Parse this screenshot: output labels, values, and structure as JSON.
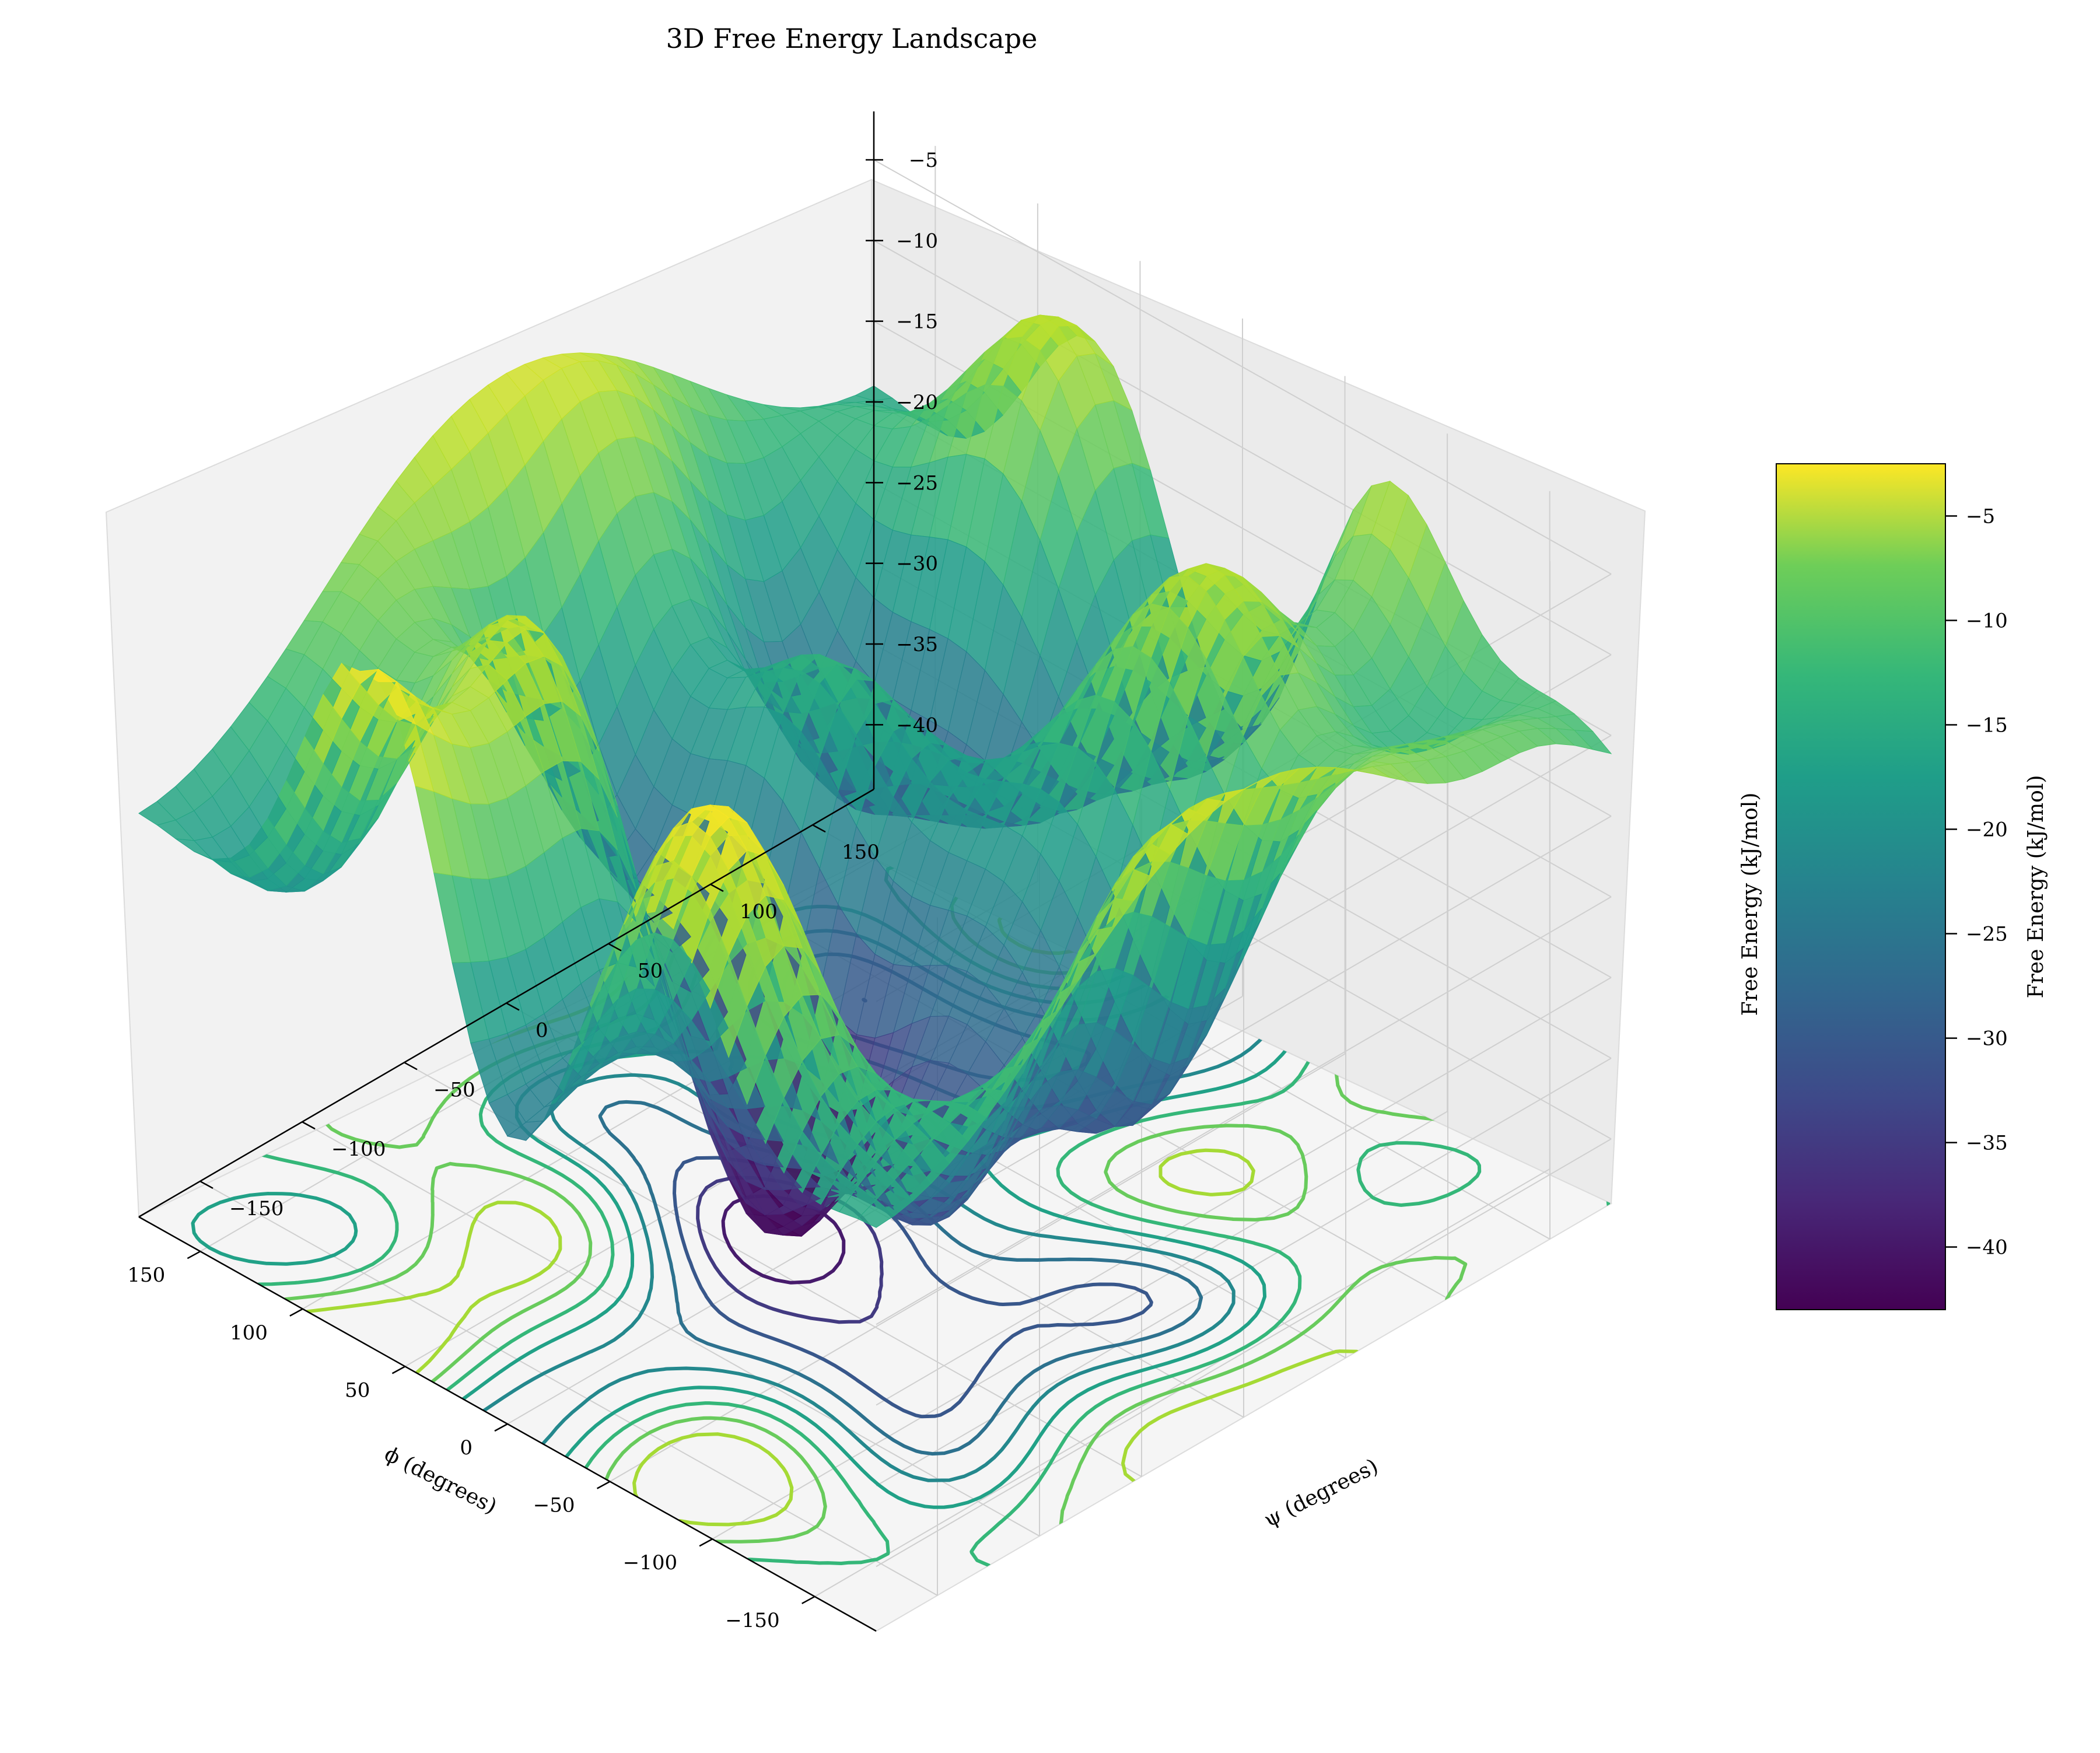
{
  "chart_data": {
    "type": "surface3d",
    "title": "3D Free Energy Landscape",
    "xlabel": "ϕ (degrees)",
    "ylabel": "ψ (degrees)",
    "zlabel": "Free Energy (kJ/mol)",
    "colorbar_label": "Free Energy (kJ/mol)",
    "colormap": "viridis",
    "xlim": [
      -180,
      180
    ],
    "ylim": [
      -180,
      180
    ],
    "zlim": [
      -44,
      -2
    ],
    "xticks": [
      "−150",
      "−100",
      "−50",
      "0",
      "50",
      "100",
      "150"
    ],
    "xtick_values": [
      -150,
      -100,
      -50,
      0,
      50,
      100,
      150
    ],
    "yticks": [
      "−150",
      "−100",
      "−50",
      "0",
      "50",
      "100",
      "150"
    ],
    "ytick_values": [
      -150,
      -100,
      -50,
      0,
      50,
      100,
      150
    ],
    "zticks": [
      "−5",
      "−10",
      "−15",
      "−20",
      "−25",
      "−30",
      "−35",
      "−40"
    ],
    "ztick_values": [
      -5,
      -10,
      -15,
      -20,
      -25,
      -30,
      -35,
      -40
    ],
    "colorbar_ticks": [
      "−5",
      "−10",
      "−15",
      "−20",
      "−25",
      "−30",
      "−35",
      "−40"
    ],
    "colorbar_tick_values": [
      -5,
      -10,
      -15,
      -20,
      -25,
      -30,
      -35,
      -40
    ],
    "colorbar_range": [
      -43,
      -2.5
    ],
    "grid": true,
    "contour_projection": "bottom",
    "surface_basins": [
      {
        "phi": 20,
        "psi": -30,
        "depth": -42
      },
      {
        "phi": -60,
        "psi": -40,
        "depth": -38
      },
      {
        "phi": 60,
        "psi": 100,
        "depth": -30
      }
    ],
    "surface_peaks": [
      {
        "phi": -150,
        "psi": 150,
        "height": -3
      },
      {
        "phi": 60,
        "psi": -160,
        "height": -3
      },
      {
        "phi": 100,
        "psi": -60,
        "height": -4
      }
    ]
  }
}
